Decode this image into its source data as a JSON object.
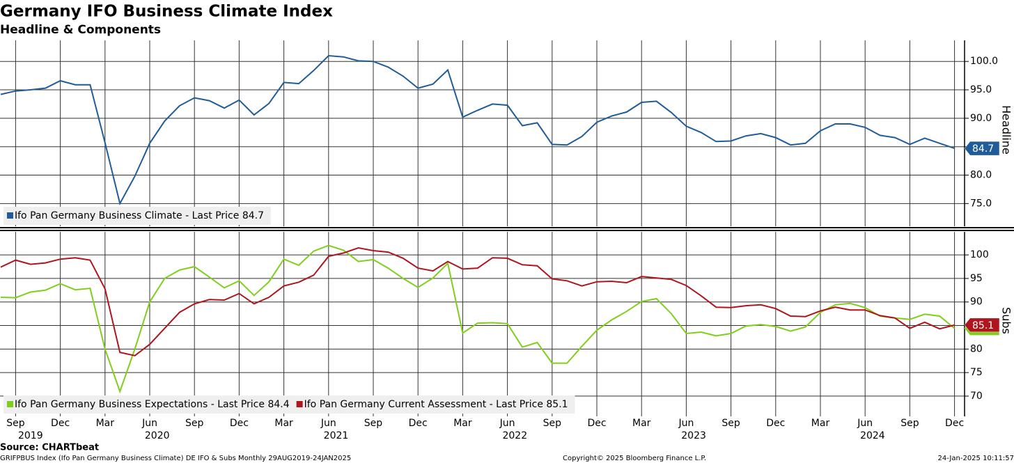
{
  "chart_data": [
    {
      "type": "line",
      "title": "Germany IFO Business Climate Index",
      "subtitle": "Headline & Components",
      "y_label": "Headline",
      "x": [
        "2019-08",
        "2019-09",
        "2019-10",
        "2019-11",
        "2019-12",
        "2020-01",
        "2020-02",
        "2020-03",
        "2020-04",
        "2020-05",
        "2020-06",
        "2020-07",
        "2020-08",
        "2020-09",
        "2020-10",
        "2020-11",
        "2020-12",
        "2021-01",
        "2021-02",
        "2021-03",
        "2021-04",
        "2021-05",
        "2021-06",
        "2021-07",
        "2021-08",
        "2021-09",
        "2021-10",
        "2021-11",
        "2021-12",
        "2022-01",
        "2022-02",
        "2022-03",
        "2022-04",
        "2022-05",
        "2022-06",
        "2022-07",
        "2022-08",
        "2022-09",
        "2022-10",
        "2022-11",
        "2022-12",
        "2023-01",
        "2023-02",
        "2023-03",
        "2023-04",
        "2023-05",
        "2023-06",
        "2023-07",
        "2023-08",
        "2023-09",
        "2023-10",
        "2023-11",
        "2023-12",
        "2024-01",
        "2024-02",
        "2024-03",
        "2024-04",
        "2024-05",
        "2024-06",
        "2024-07",
        "2024-08",
        "2024-09",
        "2024-10",
        "2024-11",
        "2024-12"
      ],
      "series": [
        {
          "name": "Ifo Pan Germany Business Climate - Last Price 84.7",
          "color": "#1f5c99",
          "values": [
            94.2,
            94.8,
            95.0,
            95.3,
            96.6,
            95.9,
            95.9,
            85.7,
            75.0,
            79.8,
            85.6,
            89.5,
            92.2,
            93.6,
            93.1,
            91.8,
            93.2,
            90.6,
            92.6,
            96.3,
            96.1,
            98.4,
            101.0,
            100.8,
            100.1,
            100.0,
            99.0,
            97.4,
            95.3,
            96.0,
            98.5,
            90.2,
            91.4,
            92.5,
            92.3,
            88.7,
            89.2,
            85.4,
            85.3,
            86.8,
            89.3,
            90.4,
            91.1,
            92.8,
            93.0,
            91.0,
            88.6,
            87.5,
            85.9,
            86.0,
            86.9,
            87.3,
            86.6,
            85.3,
            85.6,
            87.8,
            89.0,
            89.0,
            88.4,
            87.0,
            86.6,
            85.4,
            86.5,
            85.6,
            84.7
          ]
        }
      ],
      "ylim": [
        71.0,
        103.7
      ],
      "yticks": [
        {
          "value": 75,
          "label": "75.0"
        },
        {
          "value": 80,
          "label": "80.0"
        },
        {
          "value": 85,
          "label": "85.0"
        },
        {
          "value": 90,
          "label": "90.0"
        },
        {
          "value": 95,
          "label": "95.0"
        },
        {
          "value": 100,
          "label": "100.0"
        }
      ],
      "grid": true
    },
    {
      "type": "line",
      "y_label": "Subs",
      "x": [
        "2019-08",
        "2019-09",
        "2019-10",
        "2019-11",
        "2019-12",
        "2020-01",
        "2020-02",
        "2020-03",
        "2020-04",
        "2020-05",
        "2020-06",
        "2020-07",
        "2020-08",
        "2020-09",
        "2020-10",
        "2020-11",
        "2020-12",
        "2021-01",
        "2021-02",
        "2021-03",
        "2021-04",
        "2021-05",
        "2021-06",
        "2021-07",
        "2021-08",
        "2021-09",
        "2021-10",
        "2021-11",
        "2021-12",
        "2022-01",
        "2022-02",
        "2022-03",
        "2022-04",
        "2022-05",
        "2022-06",
        "2022-07",
        "2022-08",
        "2022-09",
        "2022-10",
        "2022-11",
        "2022-12",
        "2023-01",
        "2023-02",
        "2023-03",
        "2023-04",
        "2023-05",
        "2023-06",
        "2023-07",
        "2023-08",
        "2023-09",
        "2023-10",
        "2023-11",
        "2023-12",
        "2024-01",
        "2024-02",
        "2024-03",
        "2024-04",
        "2024-05",
        "2024-06",
        "2024-07",
        "2024-08",
        "2024-09",
        "2024-10",
        "2024-11",
        "2024-12"
      ],
      "series": [
        {
          "name": "Ifo Pan Germany Business Expectations - Last Price 84.4",
          "color": "#7fcf1a",
          "values": [
            91.0,
            90.9,
            92.1,
            92.5,
            93.9,
            92.6,
            92.9,
            80.0,
            71.0,
            80.0,
            90.0,
            95.0,
            96.8,
            97.5,
            95.3,
            93.0,
            94.5,
            91.4,
            94.3,
            99.1,
            97.8,
            100.8,
            102.0,
            101.0,
            98.6,
            99.0,
            97.2,
            95.0,
            93.1,
            95.1,
            98.2,
            83.4,
            85.5,
            85.6,
            85.4,
            80.4,
            81.4,
            77.0,
            77.0,
            80.6,
            84.0,
            86.2,
            88.0,
            90.1,
            90.7,
            87.5,
            83.3,
            83.6,
            82.8,
            83.3,
            84.9,
            85.2,
            84.8,
            83.8,
            84.7,
            87.8,
            89.4,
            89.7,
            88.8,
            87.0,
            86.6,
            86.3,
            87.4,
            87.0,
            84.4
          ]
        },
        {
          "name": "Ifo Pan Germany Current Assessment - Last Price 85.1",
          "color": "#b0141c",
          "values": [
            97.4,
            98.9,
            98.0,
            98.3,
            99.1,
            99.4,
            98.9,
            92.8,
            79.3,
            78.6,
            81.0,
            84.4,
            87.8,
            89.6,
            90.5,
            90.4,
            91.8,
            89.6,
            91.0,
            93.4,
            94.2,
            95.7,
            99.7,
            100.4,
            101.5,
            100.9,
            100.6,
            99.3,
            97.2,
            96.6,
            98.6,
            97.0,
            97.2,
            99.4,
            99.3,
            97.9,
            97.7,
            94.9,
            94.5,
            93.4,
            94.3,
            94.4,
            94.1,
            95.4,
            95.1,
            94.8,
            93.5,
            91.3,
            88.9,
            88.8,
            89.2,
            89.4,
            88.6,
            87.0,
            86.9,
            88.1,
            88.9,
            88.3,
            88.3,
            87.1,
            86.6,
            84.4,
            85.7,
            84.3,
            85.1
          ]
        }
      ],
      "ylim": [
        65.7,
        104.9
      ],
      "yticks": [
        70,
        75,
        80,
        85,
        90,
        95,
        100
      ],
      "grid": true,
      "xticks": [
        {
          "value": "2019-09",
          "label": "Sep"
        },
        {
          "value": "2019-12",
          "label": "Dec"
        },
        {
          "value": "2020-03",
          "label": "Mar"
        },
        {
          "value": "2020-06",
          "label": "Jun"
        },
        {
          "value": "2020-09",
          "label": "Sep"
        },
        {
          "value": "2020-12",
          "label": "Dec"
        },
        {
          "value": "2021-03",
          "label": "Mar"
        },
        {
          "value": "2021-06",
          "label": "Jun"
        },
        {
          "value": "2021-09",
          "label": "Sep"
        },
        {
          "value": "2021-12",
          "label": "Dec"
        },
        {
          "value": "2022-03",
          "label": "Mar"
        },
        {
          "value": "2022-06",
          "label": "Jun"
        },
        {
          "value": "2022-09",
          "label": "Sep"
        },
        {
          "value": "2022-12",
          "label": "Dec"
        },
        {
          "value": "2023-03",
          "label": "Mar"
        },
        {
          "value": "2023-06",
          "label": "Jun"
        },
        {
          "value": "2023-09",
          "label": "Sep"
        },
        {
          "value": "2023-12",
          "label": "Dec"
        },
        {
          "value": "2024-03",
          "label": "Mar"
        },
        {
          "value": "2024-06",
          "label": "Jun"
        },
        {
          "value": "2024-09",
          "label": "Sep"
        },
        {
          "value": "2024-12",
          "label": "Dec"
        }
      ],
      "years": [
        2019,
        2020,
        2021,
        2022,
        2023,
        2024
      ]
    }
  ],
  "footer": {
    "source": "Source: CHARTbeat",
    "index": "GRIFPBUS Index (Ifo Pan Germany Business Climate) DE IFO & Subs  Monthly 29AUG2019-24JAN2025",
    "copyright": "Copyright© 2025 Bloomberg Finance L.P.",
    "timestamp": "24-Jan-2025 10:11:57"
  }
}
